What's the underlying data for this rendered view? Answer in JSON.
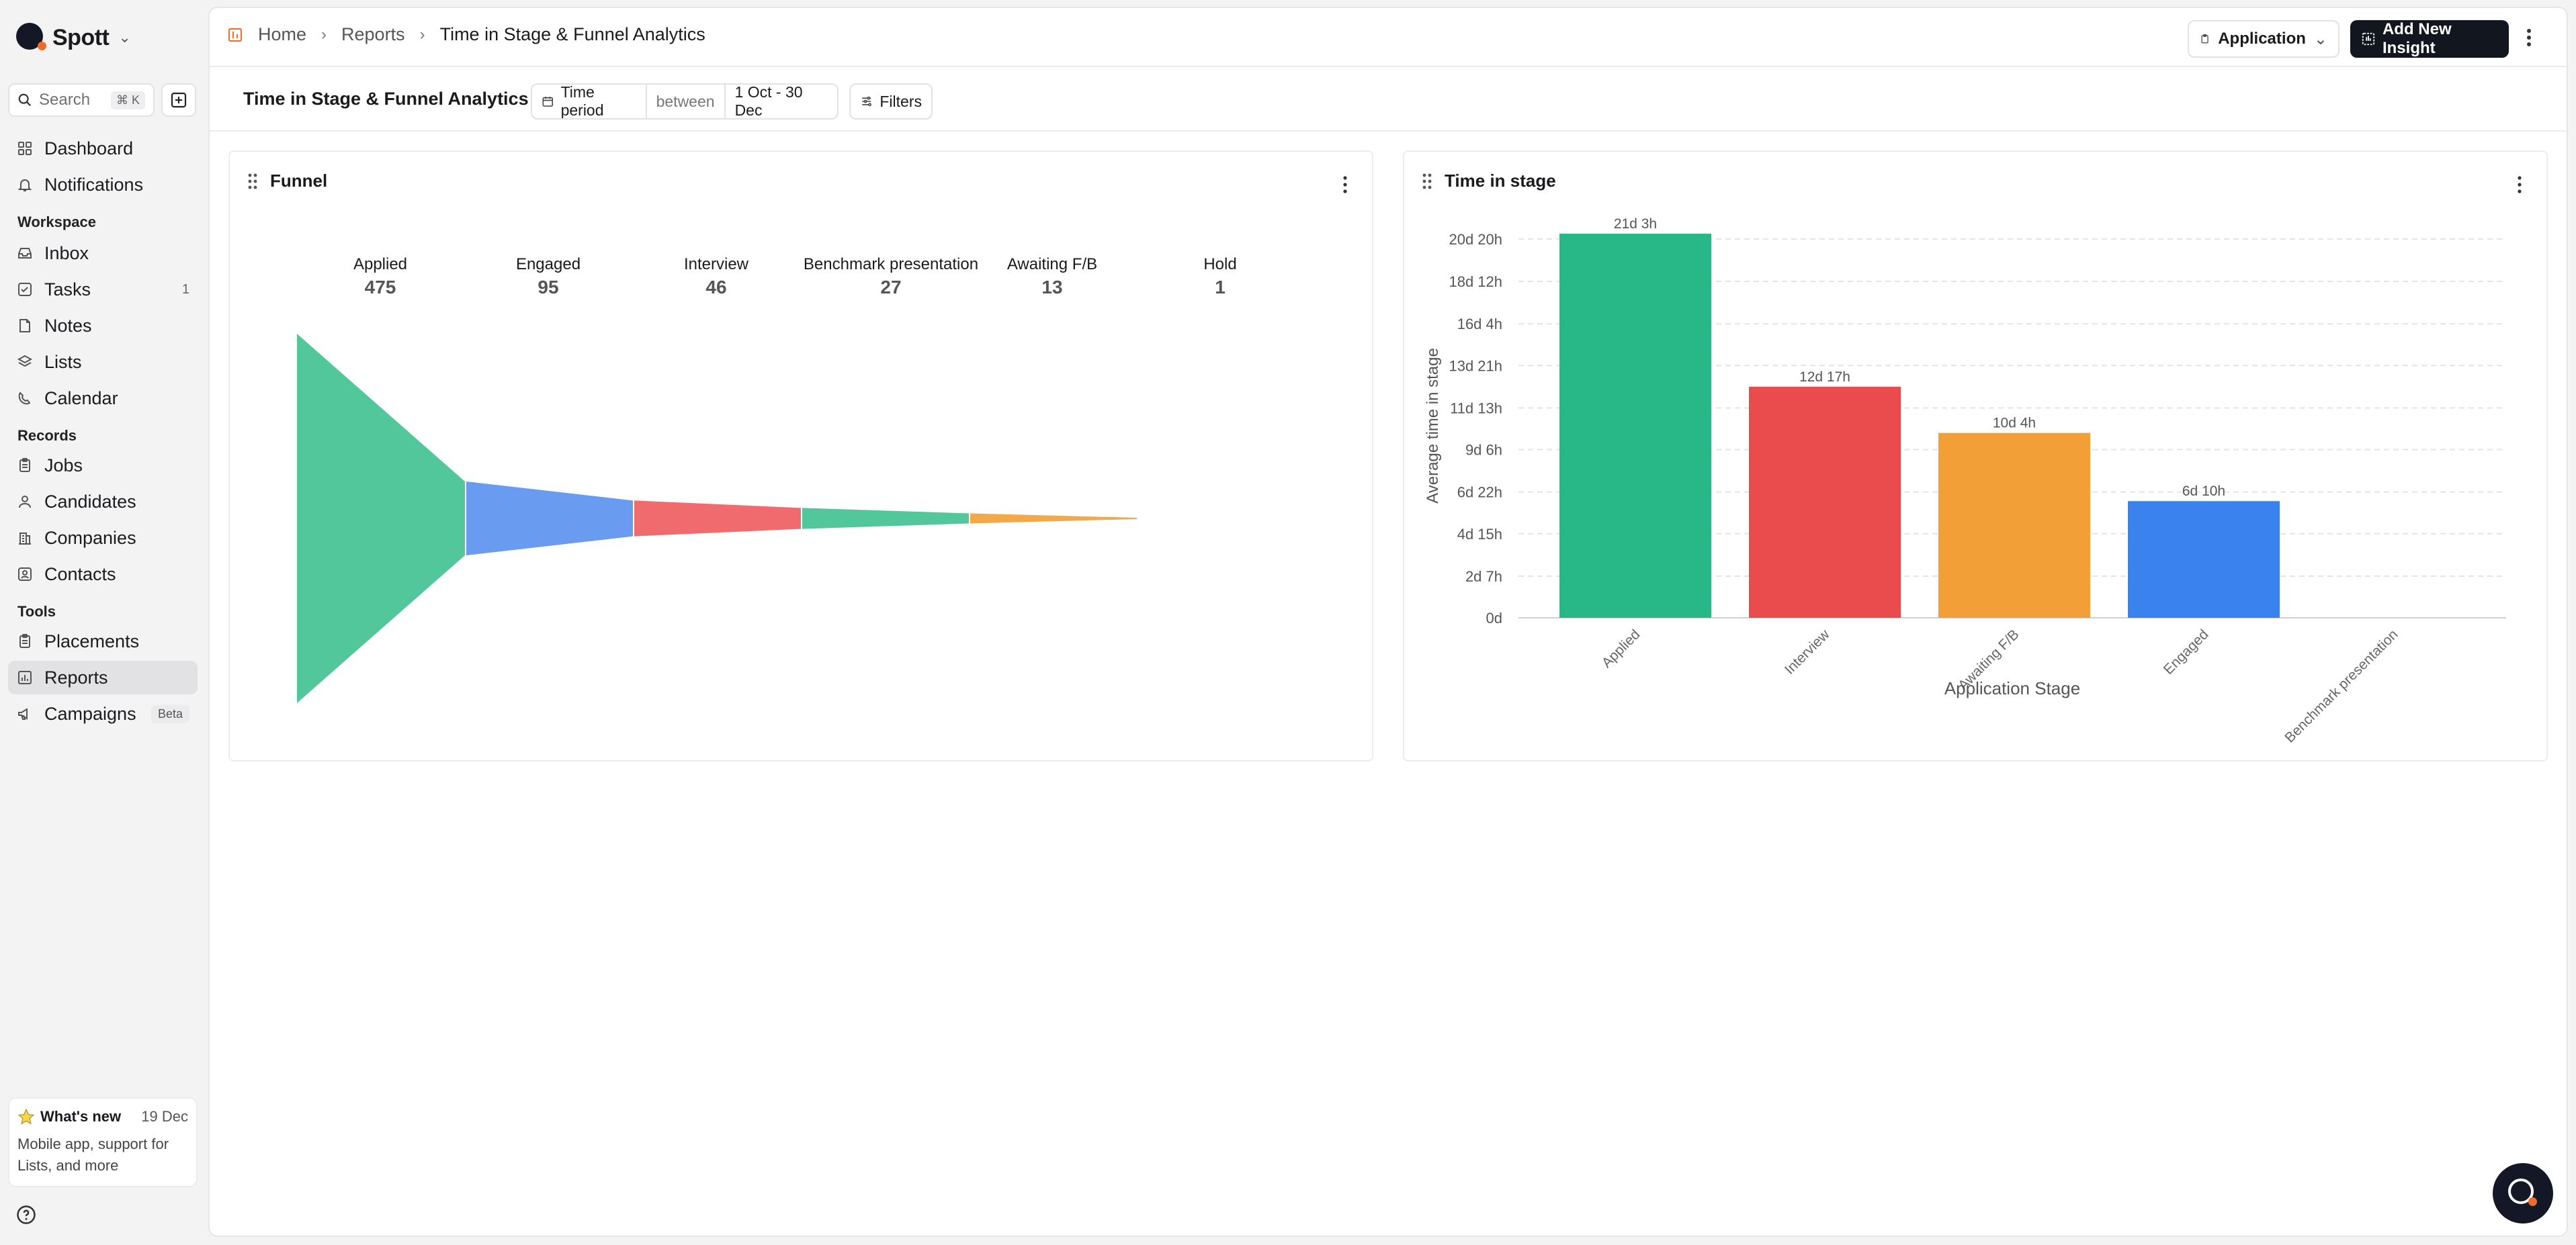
{
  "app": {
    "name": "Spott",
    "accent": "#f06a2a"
  },
  "sidebar": {
    "search_placeholder": "Search",
    "search_shortcut": "⌘ K",
    "top_items": [
      {
        "label": "Dashboard",
        "icon": "dashboard-icon"
      },
      {
        "label": "Notifications",
        "icon": "bell-icon"
      }
    ],
    "workspace_label": "Workspace",
    "workspace_items": [
      {
        "label": "Inbox",
        "icon": "inbox-icon"
      },
      {
        "label": "Tasks",
        "icon": "checkbox-icon",
        "count": "1"
      },
      {
        "label": "Notes",
        "icon": "note-icon"
      },
      {
        "label": "Lists",
        "icon": "layers-icon"
      },
      {
        "label": "Calendar",
        "icon": "calendar-icon"
      }
    ],
    "records_label": "Records",
    "records_items": [
      {
        "label": "Jobs",
        "icon": "clipboard-icon"
      },
      {
        "label": "Candidates",
        "icon": "person-icon"
      },
      {
        "label": "Companies",
        "icon": "building-icon"
      },
      {
        "label": "Contacts",
        "icon": "contact-icon"
      }
    ],
    "tools_label": "Tools",
    "tools_items": [
      {
        "label": "Placements",
        "icon": "clipboard-icon"
      },
      {
        "label": "Reports",
        "icon": "bar-chart-icon",
        "active": true
      },
      {
        "label": "Campaigns",
        "icon": "megaphone-icon",
        "badge": "Beta"
      }
    ],
    "whats_new": {
      "title": "What's new",
      "date": "19 Dec",
      "body": "Mobile app, support for Lists, and more"
    }
  },
  "topbar": {
    "breadcrumb": [
      "Home",
      "Reports",
      "Time in Stage & Funnel Analytics"
    ],
    "entity_select": "Application",
    "add_button": "Add New Insight"
  },
  "toolbar": {
    "title": "Time in Stage & Funnel Analytics",
    "time_period_label": "Time period",
    "operator": "between",
    "range": "1 Oct - 30 Dec",
    "filters_label": "Filters"
  },
  "funnel": {
    "title": "Funnel",
    "stages": [
      {
        "name": "Applied",
        "count": "475",
        "color": "#52c79b"
      },
      {
        "name": "Engaged",
        "count": "95",
        "color": "#699bf0"
      },
      {
        "name": "Interview",
        "count": "46",
        "color": "#ef6b6e"
      },
      {
        "name": "Benchmark presentation",
        "count": "27",
        "color": "#52c79b"
      },
      {
        "name": "Awaiting F/B",
        "count": "13",
        "color": "#f3a84a"
      },
      {
        "name": "Hold",
        "count": "1",
        "color": "#699bf0"
      }
    ]
  },
  "chart_data": {
    "type": "bar",
    "title": "Time in stage",
    "xlabel": "Application Stage",
    "ylabel": "Average time in stage",
    "unit": "days",
    "categories": [
      "Applied",
      "Interview",
      "Awaiting F/B",
      "Engaged",
      "Benchmark presentation"
    ],
    "values": [
      21.125,
      12.708,
      10.167,
      6.417,
      0
    ],
    "value_labels": [
      "21d 3h",
      "12d 17h",
      "10d 4h",
      "6d 10h",
      ""
    ],
    "colors": [
      "#28b887",
      "#ea4b4c",
      "#f19f36",
      "#3a82ee",
      "#999999"
    ],
    "yticks": [
      {
        "value": 0,
        "label": "0d"
      },
      {
        "value": 2.292,
        "label": "2d 7h"
      },
      {
        "value": 4.625,
        "label": "4d 15h"
      },
      {
        "value": 6.917,
        "label": "6d 22h"
      },
      {
        "value": 9.25,
        "label": "9d 6h"
      },
      {
        "value": 11.542,
        "label": "11d 13h"
      },
      {
        "value": 13.875,
        "label": "13d 21h"
      },
      {
        "value": 16.167,
        "label": "16d 4h"
      },
      {
        "value": 18.5,
        "label": "18d 12h"
      },
      {
        "value": 20.833,
        "label": "20d 20h"
      }
    ],
    "ylim": [
      0,
      21.125
    ],
    "grid": true,
    "legend": "none"
  }
}
